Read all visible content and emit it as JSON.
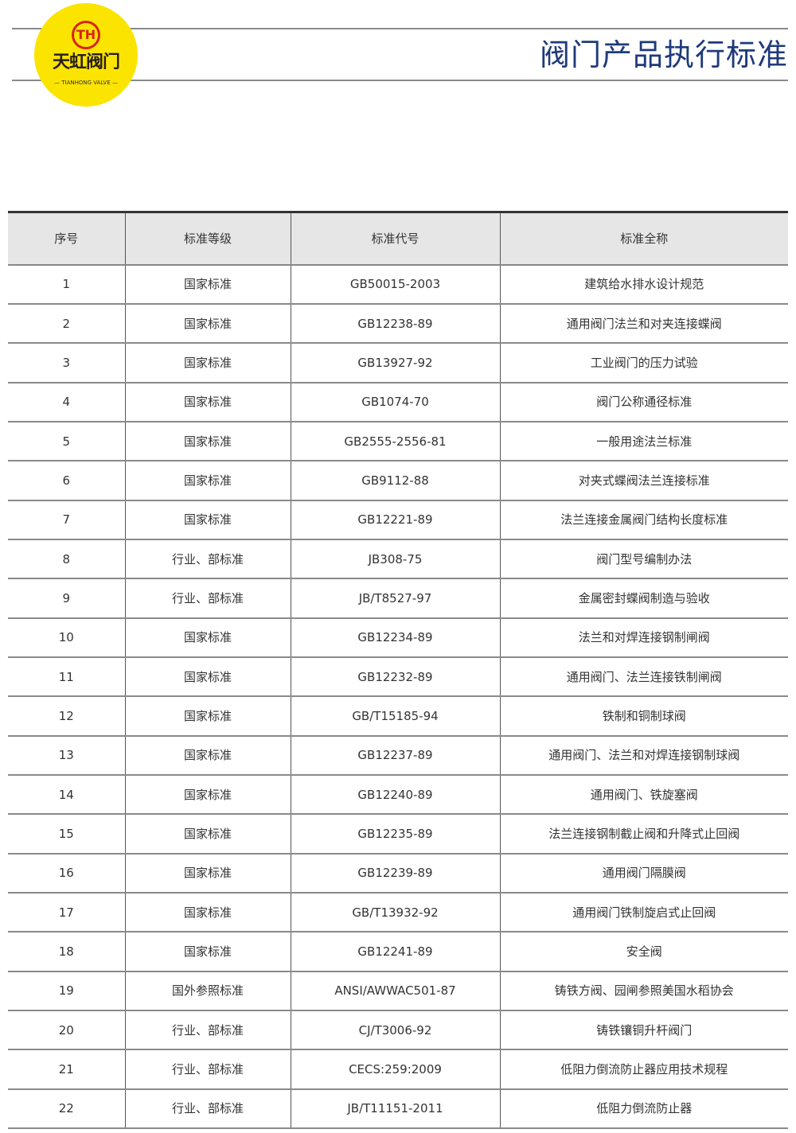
{
  "logo": {
    "mark": "TH",
    "name_cn": "天虹阀门",
    "name_en": "— TIANHONG VALVE —"
  },
  "title": "阀门产品执行标准",
  "table": {
    "headers": [
      "序号",
      "标准等级",
      "标准代号",
      "标准全称"
    ],
    "rows": [
      [
        "1",
        "国家标准",
        "GB50015-2003",
        "建筑给水排水设计规范"
      ],
      [
        "2",
        "国家标准",
        "GB12238-89",
        "通用阀门法兰和对夹连接蝶阀"
      ],
      [
        "3",
        "国家标准",
        "GB13927-92",
        "工业阀门的压力试验"
      ],
      [
        "4",
        "国家标准",
        "GB1074-70",
        "阀门公称通径标准"
      ],
      [
        "5",
        "国家标准",
        "GB2555-2556-81",
        "一般用途法兰标准"
      ],
      [
        "6",
        "国家标准",
        "GB9112-88",
        "对夹式蝶阀法兰连接标准"
      ],
      [
        "7",
        "国家标准",
        "GB12221-89",
        "法兰连接金属阀门结构长度标准"
      ],
      [
        "8",
        "行业、部标准",
        "JB308-75",
        "阀门型号编制办法"
      ],
      [
        "9",
        "行业、部标准",
        "JB/T8527-97",
        "金属密封蝶阀制造与验收"
      ],
      [
        "10",
        "国家标准",
        "GB12234-89",
        "法兰和对焊连接钢制闸阀"
      ],
      [
        "11",
        "国家标准",
        "GB12232-89",
        "通用阀门、法兰连接铁制闸阀"
      ],
      [
        "12",
        "国家标准",
        "GB/T15185-94",
        "铁制和铜制球阀"
      ],
      [
        "13",
        "国家标准",
        "GB12237-89",
        "通用阀门、法兰和对焊连接钢制球阀"
      ],
      [
        "14",
        "国家标准",
        "GB12240-89",
        "通用阀门、铁旋塞阀"
      ],
      [
        "15",
        "国家标准",
        "GB12235-89",
        "法兰连接钢制截止阀和升降式止回阀"
      ],
      [
        "16",
        "国家标准",
        "GB12239-89",
        "通用阀门隔膜阀"
      ],
      [
        "17",
        "国家标准",
        "GB/T13932-92",
        "通用阀门铁制旋启式止回阀"
      ],
      [
        "18",
        "国家标准",
        "GB12241-89",
        "安全阀"
      ],
      [
        "19",
        "国外参照标准",
        "ANSI/AWWAC501-87",
        "铸铁方阀、园闸参照美国水稻协会"
      ],
      [
        "20",
        "行业、部标准",
        "CJ/T3006-92",
        "铸铁镶铜升杆阀门"
      ],
      [
        "21",
        "行业、部标准",
        "CECS:259:2009",
        "低阻力倒流防止器应用技术规程"
      ],
      [
        "22",
        "行业、部标准",
        "JB/T11151-2011",
        "低阻力倒流防止器"
      ]
    ]
  },
  "colors": {
    "title": "#1f3a7a",
    "logo_bg": "#fbe400",
    "logo_mark": "#d8231b",
    "header_bg": "#e6e6e6"
  }
}
